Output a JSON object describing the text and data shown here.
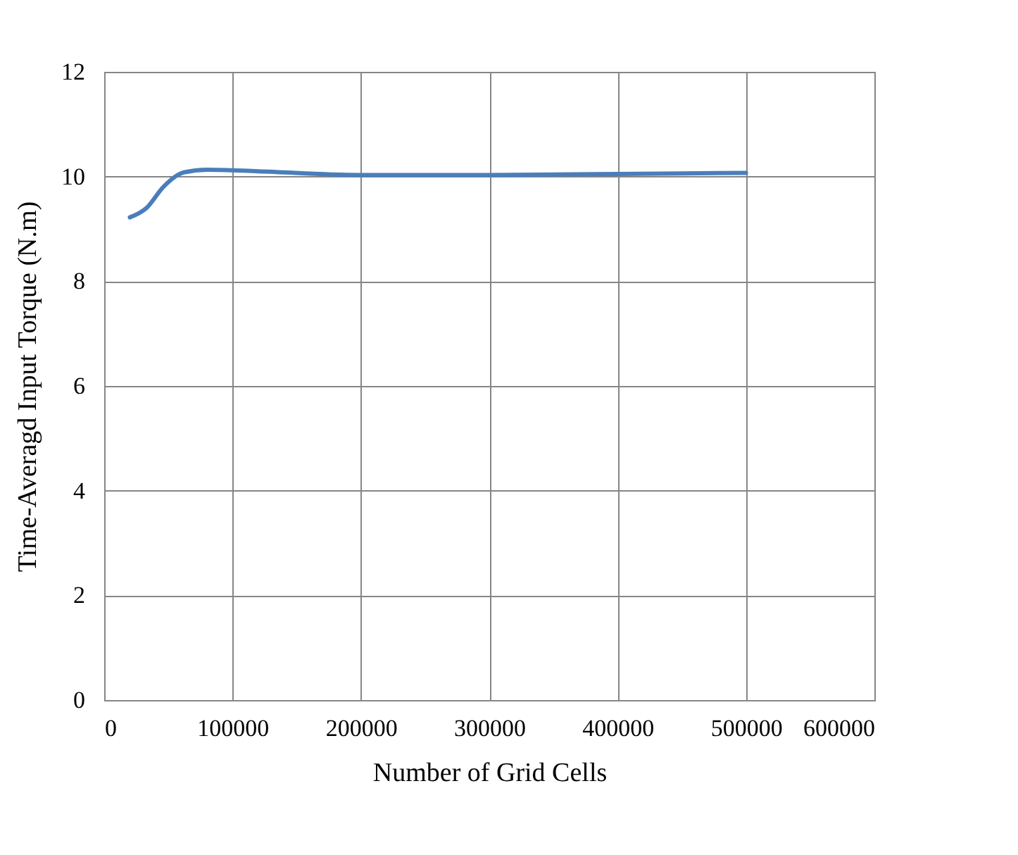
{
  "chart_data": {
    "type": "line",
    "xlabel": "Number of Grid Cells",
    "ylabel": "Time-Averagd Input Torque (N.m)",
    "x": [
      20000,
      33000,
      46000,
      62000,
      80000,
      120000,
      200000,
      300000,
      400000,
      500000
    ],
    "series": [
      {
        "color": "#4a7ebb",
        "values": [
          9.22,
          9.4,
          9.8,
          10.08,
          10.13,
          10.1,
          10.03,
          10.03,
          10.05,
          10.07
        ]
      }
    ],
    "xlim": [
      0,
      600000
    ],
    "xticks": [
      0,
      100000,
      200000,
      300000,
      400000,
      500000,
      600000
    ],
    "ylim": [
      0,
      12
    ],
    "yticks": [
      0,
      2,
      4,
      6,
      8,
      10,
      12
    ],
    "grid": true,
    "legend": false,
    "marker": "none",
    "line_style": "solid"
  }
}
